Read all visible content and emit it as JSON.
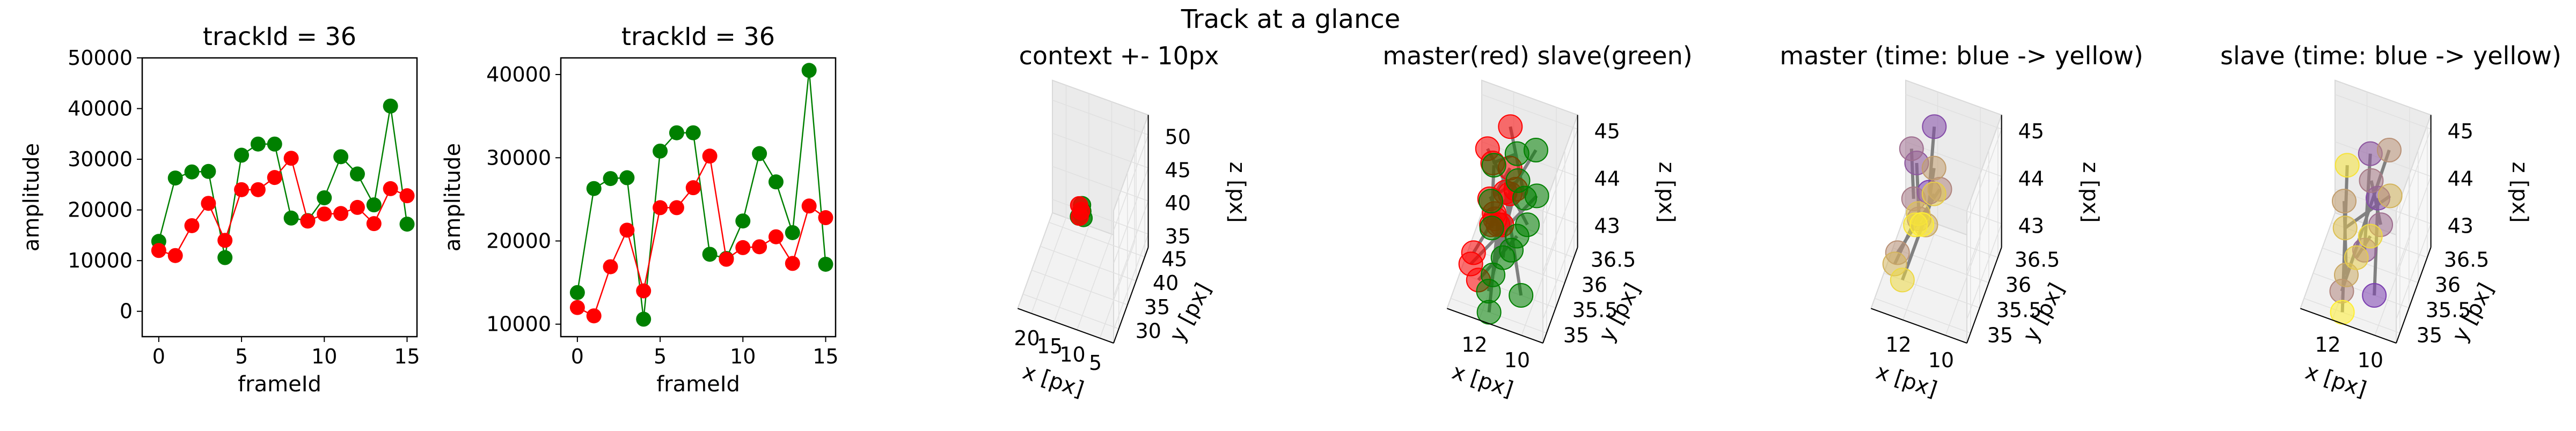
{
  "figure": {
    "suptitle": "Track at a glance"
  },
  "colors": {
    "master": "#ff0000",
    "slave": "#008000",
    "link": "#808080",
    "time_start": "#7b3fb0",
    "time_end": "#ffef33"
  },
  "chart_data": [
    {
      "type": "line",
      "title": "trackId = 36",
      "xlabel": "frameId",
      "ylabel": "amplitude",
      "xlim": [
        -1,
        15.6
      ],
      "ylim": [
        -5000,
        50000
      ],
      "xticks": [
        0,
        5,
        10,
        15
      ],
      "yticks": [
        0,
        10000,
        20000,
        30000,
        40000,
        50000
      ],
      "markers": true,
      "series": [
        {
          "color": "green",
          "x": [
            0,
            1,
            2,
            3,
            4,
            5,
            6,
            7,
            8,
            9,
            10,
            11,
            12,
            13,
            14,
            15
          ],
          "values": [
            13800,
            26300,
            27500,
            27600,
            10600,
            30800,
            33000,
            33000,
            18400,
            17900,
            22400,
            30500,
            27100,
            21000,
            40500,
            17200
          ]
        },
        {
          "color": "red",
          "x": [
            0,
            1,
            2,
            3,
            4,
            5,
            6,
            7,
            8,
            9,
            10,
            11,
            12,
            13,
            14,
            15
          ],
          "values": [
            12000,
            11000,
            16900,
            21300,
            14000,
            24000,
            24000,
            26400,
            30200,
            17800,
            19200,
            19300,
            20500,
            17300,
            24200,
            22800
          ]
        }
      ]
    },
    {
      "type": "line",
      "title": "trackId = 36",
      "xlabel": "frameId",
      "ylabel": "amplitude",
      "xlim": [
        -1,
        15.6
      ],
      "ylim": [
        8500,
        42000
      ],
      "xticks": [
        0,
        5,
        10,
        15
      ],
      "yticks": [
        10000,
        20000,
        30000,
        40000
      ],
      "markers": true,
      "series": [
        {
          "color": "green",
          "x": [
            0,
            1,
            2,
            3,
            4,
            5,
            6,
            7,
            8,
            9,
            10,
            11,
            12,
            13,
            14,
            15
          ],
          "values": [
            13800,
            26300,
            27500,
            27600,
            10600,
            30800,
            33000,
            33000,
            18400,
            17900,
            22400,
            30500,
            27100,
            21000,
            40500,
            17200
          ]
        },
        {
          "color": "red",
          "x": [
            0,
            1,
            2,
            3,
            4,
            5,
            6,
            7,
            8,
            9,
            10,
            11,
            12,
            13,
            14,
            15
          ],
          "values": [
            12000,
            11000,
            16900,
            21300,
            14000,
            24000,
            24000,
            26400,
            30200,
            17800,
            19200,
            19300,
            20500,
            17300,
            24200,
            22800
          ]
        }
      ]
    },
    {
      "type": "scatter",
      "projection": "3d",
      "title": "context +- 10px",
      "xlabel": "x [px]",
      "ylabel": "y [px]",
      "zlabel": "z [px]",
      "xlim": [
        2,
        23
      ],
      "ylim": [
        27,
        47
      ],
      "zlim": [
        33,
        53
      ],
      "xticks": [
        5,
        10,
        15,
        20
      ],
      "yticks": [
        30,
        35,
        40,
        45
      ],
      "zticks": [
        35,
        40,
        45,
        50
      ],
      "series": [
        {
          "color": "green",
          "x": [
            11.8,
            12.2,
            12.6,
            12.0,
            12.9,
            12.4
          ],
          "y": [
            35.5,
            35.8,
            36.0,
            35.3,
            35.7,
            36.2
          ],
          "z": [
            43.3,
            44.0,
            43.6,
            44.4,
            43.1,
            44.6
          ]
        },
        {
          "color": "red",
          "x": [
            12.5,
            13.0,
            12.7
          ],
          "y": [
            35.9,
            36.1,
            35.6
          ],
          "z": [
            43.9,
            44.5,
            43.2
          ]
        }
      ]
    },
    {
      "type": "scatter",
      "projection": "3d",
      "title": "master(red) slave(green)",
      "xlabel": "x [px]",
      "ylabel": "y [px]",
      "zlabel": "z [px]",
      "xlim": [
        9,
        13.5
      ],
      "ylim": [
        34.8,
        36.7
      ],
      "zlim": [
        42.5,
        45.3
      ],
      "xticks": [
        10,
        12
      ],
      "yticks": [
        35.0,
        35.5,
        36.0,
        36.5
      ],
      "zticks": [
        43,
        44,
        45
      ],
      "series": [
        {
          "name": "master",
          "color": "red",
          "x": [
            11.2,
            11.9,
            12.3,
            11.5,
            12.8,
            12.1,
            11.3,
            12.6,
            12.0,
            11.7,
            12.9,
            12.4,
            11.4,
            12.2,
            12.7,
            11.8
          ],
          "y": [
            35.3,
            36.4,
            35.9,
            35.1,
            36.2,
            35.5,
            36.0,
            35.2,
            36.5,
            35.7,
            35.4,
            36.1,
            35.8,
            35.0,
            36.3,
            35.6
          ],
          "z": [
            44.8,
            44.9,
            44.6,
            44.4,
            44.5,
            44.3,
            44.1,
            43.4,
            43.9,
            43.6,
            42.9,
            43.3,
            44.2,
            43.1,
            42.8,
            43.7
          ]
        },
        {
          "name": "slave",
          "color": "green",
          "x": [
            10.2,
            10.8,
            11.5,
            11.0,
            10.5,
            11.2,
            11.9,
            10.7,
            12.3,
            11.6,
            10.4,
            12.0,
            11.3,
            10.9,
            12.5,
            11.7
          ],
          "y": [
            35.0,
            35.9,
            36.3,
            35.4,
            35.7,
            36.0,
            35.2,
            36.4,
            35.8,
            35.1,
            36.1,
            35.5,
            35.3,
            35.6,
            36.2,
            35.0
          ],
          "z": [
            43.1,
            44.1,
            44.5,
            43.5,
            43.8,
            44.3,
            42.7,
            44.6,
            43.9,
            43.2,
            44.0,
            43.7,
            43.4,
            43.6,
            44.2,
            42.5
          ]
        }
      ]
    },
    {
      "type": "scatter",
      "projection": "3d",
      "title": "master (time: blue -> yellow)",
      "xlabel": "x [px]",
      "ylabel": "y [px]",
      "zlabel": "z [px]",
      "xlim": [
        9,
        13.5
      ],
      "ylim": [
        34.8,
        36.7
      ],
      "zlim": [
        42.5,
        45.3
      ],
      "xticks": [
        10,
        12
      ],
      "yticks": [
        35.0,
        35.5,
        36.0,
        36.5
      ],
      "zticks": [
        43,
        44,
        45
      ],
      "series": [
        {
          "name": "master",
          "color_by": "time",
          "x": [
            11.2,
            11.9,
            12.3,
            11.5,
            12.8,
            12.1,
            11.3,
            12.6,
            12.0,
            11.7,
            12.9,
            12.4,
            11.4,
            12.2,
            12.7,
            11.8
          ],
          "y": [
            35.3,
            36.4,
            35.9,
            35.1,
            36.2,
            35.5,
            36.0,
            35.2,
            36.5,
            35.7,
            35.4,
            36.1,
            35.8,
            35.0,
            36.3,
            35.6
          ],
          "z": [
            44.8,
            44.9,
            44.6,
            44.4,
            44.5,
            44.3,
            44.1,
            43.4,
            43.9,
            43.6,
            42.9,
            43.3,
            44.2,
            43.1,
            42.8,
            43.7
          ]
        }
      ]
    },
    {
      "type": "scatter",
      "projection": "3d",
      "title": "slave (time: blue -> yellow)",
      "xlabel": "x [px]",
      "ylabel": "y [px]",
      "zlabel": "z [px]",
      "xlim": [
        9,
        13.5
      ],
      "ylim": [
        34.8,
        36.7
      ],
      "zlim": [
        42.5,
        45.3
      ],
      "xticks": [
        10,
        12
      ],
      "yticks": [
        35.0,
        35.5,
        36.0,
        36.5
      ],
      "zticks": [
        43,
        44,
        45
      ],
      "series": [
        {
          "name": "slave",
          "color_by": "time",
          "x": [
            10.2,
            10.8,
            11.5,
            11.0,
            10.5,
            11.2,
            11.9,
            10.7,
            12.3,
            11.6,
            10.4,
            12.0,
            11.3,
            10.9,
            12.5,
            11.7
          ],
          "y": [
            35.0,
            35.9,
            36.3,
            35.4,
            35.7,
            36.0,
            35.2,
            36.4,
            35.8,
            35.1,
            36.1,
            35.5,
            35.3,
            35.6,
            36.2,
            35.0
          ],
          "z": [
            43.1,
            44.1,
            44.5,
            43.5,
            43.8,
            44.3,
            42.7,
            44.6,
            43.9,
            43.2,
            44.0,
            43.7,
            43.4,
            43.6,
            44.2,
            42.5
          ]
        }
      ]
    }
  ]
}
